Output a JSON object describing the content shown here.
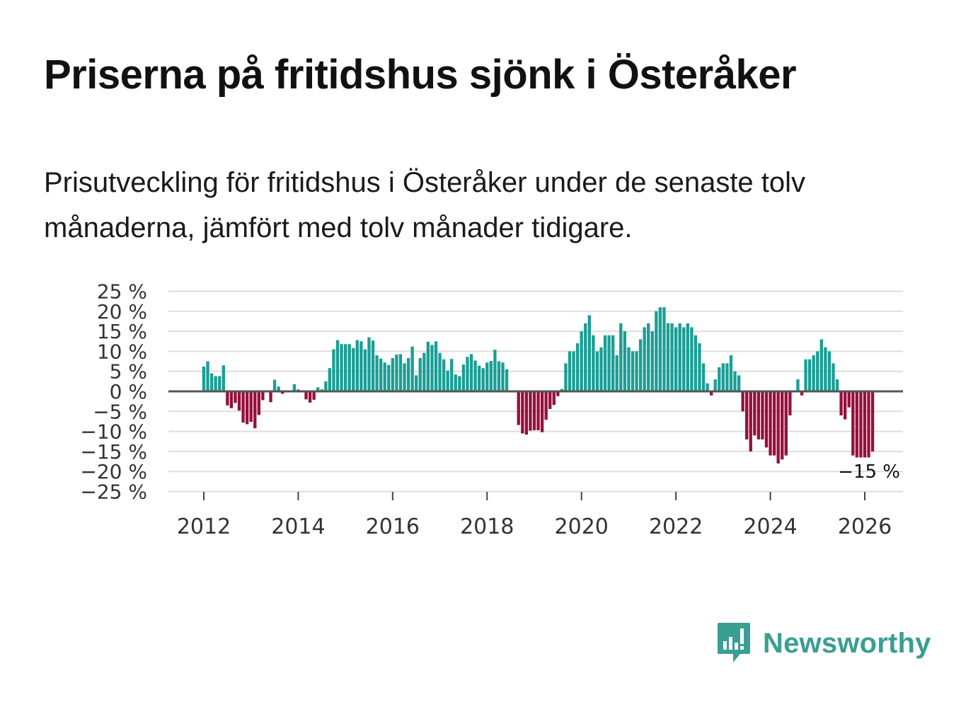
{
  "title": "Priserna på fritidshus sjönk i Österåker",
  "subtitle": "Prisutveckling för fritidshus i Österåker under de senaste tolv månaderna, jämfört med tolv månader tidigare.",
  "brand": {
    "name": "Newsworthy",
    "icon": "newsworthy-logo-icon",
    "color": "#3a9e93"
  },
  "colors": {
    "positive": "#1a9e95",
    "negative": "#960f3c",
    "grid": "#dddddd",
    "zero_line": "#555555"
  },
  "chart_data": {
    "type": "bar",
    "title": "Priserna på fritidshus sjönk i Österåker",
    "xlabel": "",
    "ylabel": "",
    "ylim": [
      -25,
      25
    ],
    "y_ticks": [
      "25 %",
      "20 %",
      "15 %",
      "10 %",
      "5 %",
      "0 %",
      "−5 %",
      "−10 %",
      "−15 %",
      "−20 %",
      "−25 %"
    ],
    "y_tick_values": [
      25,
      20,
      15,
      10,
      5,
      0,
      -5,
      -10,
      -15,
      -20,
      -25
    ],
    "x_ticks": [
      "2012",
      "2014",
      "2016",
      "2018",
      "2020",
      "2022",
      "2024",
      "2026"
    ],
    "x_tick_values": [
      2012,
      2014,
      2016,
      2018,
      2020,
      2022,
      2024,
      2026
    ],
    "x_start": 2012.0,
    "step": 0.08333,
    "last_label": "−15 %",
    "values": [
      6.2,
      7.5,
      4.5,
      3.8,
      3.8,
      6.5,
      -3.5,
      -4.2,
      -2.9,
      -4.8,
      -7.8,
      -8.2,
      -7.6,
      -9.2,
      -5.9,
      -2.2,
      0.0,
      -2.7,
      2.9,
      1.2,
      -0.6,
      0.0,
      0.0,
      1.8,
      0.5,
      0.0,
      -2.0,
      -2.8,
      -2.1,
      1.0,
      0.5,
      2.5,
      5.8,
      10.5,
      12.8,
      11.8,
      11.8,
      11.8,
      10.8,
      12.8,
      12.5,
      10.5,
      13.5,
      12.7,
      9.0,
      8.2,
      7.2,
      6.6,
      8.3,
      9.2,
      9.3,
      7.0,
      8.3,
      11.2,
      4.0,
      8.3,
      9.6,
      12.4,
      11.6,
      12.5,
      9.6,
      8.0,
      5.2,
      8.1,
      4.2,
      3.8,
      6.7,
      8.6,
      9.3,
      7.7,
      6.4,
      5.8,
      7.2,
      7.6,
      10.4,
      7.5,
      7.2,
      5.5,
      0.0,
      0.0,
      -8.4,
      -10.5,
      -10.8,
      -9.8,
      -9.7,
      -9.7,
      -10.2,
      -7.1,
      -4.4,
      -3.4,
      -1.2,
      0.6,
      7.0,
      10.0,
      10.0,
      12.0,
      15.0,
      17.0,
      19.0,
      14.0,
      10.0,
      11.0,
      14.0,
      14.0,
      14.0,
      9.0,
      17.0,
      15.0,
      11.0,
      10.0,
      10.0,
      13.0,
      16.0,
      17.0,
      15.0,
      20.0,
      21.0,
      21.0,
      17.0,
      17.0,
      16.0,
      17.0,
      16.0,
      17.0,
      16.0,
      14.0,
      12.0,
      7.0,
      2.0,
      -1.0,
      3.0,
      6.0,
      7.0,
      7.0,
      9.0,
      5.0,
      4.0,
      -5.0,
      -12.0,
      -15.0,
      -11.0,
      -12.0,
      -12.0,
      -14.0,
      -16.0,
      -16.0,
      -18.0,
      -17.0,
      -16.0,
      -6.0,
      0.0,
      3.0,
      -1.0,
      8.0,
      8.0,
      9.0,
      10.0,
      13.0,
      11.0,
      10.0,
      7.0,
      3.0,
      -6.0,
      -7.0,
      -4.0,
      -16.0,
      -16.5,
      -16.5,
      -16.5,
      -16.5,
      -15.0
    ]
  }
}
